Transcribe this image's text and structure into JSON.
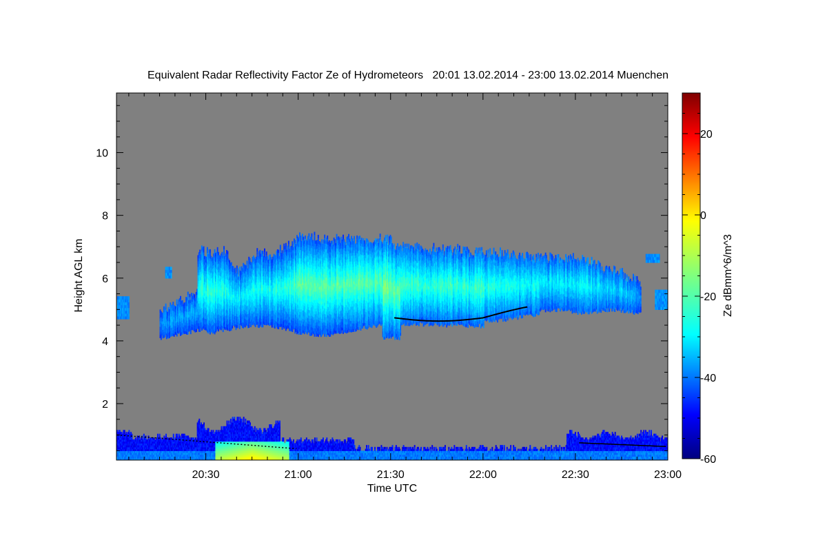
{
  "chart_data": {
    "type": "heatmap",
    "title": "Equivalent Radar Reflectivity Factor Ze of Hydrometeors   20:01 13.02.2014 - 23:00 13.02.2014 Muenchen",
    "xlabel": "Time UTC",
    "ylabel": "Height AGL km",
    "colorbar_label": "Ze dBmm^6/m^3",
    "x_range_hours": [
      20.0167,
      23.0
    ],
    "y_range_km": [
      0.2,
      11.9
    ],
    "x_ticks": [
      {
        "value": 20.5,
        "label": "20:30"
      },
      {
        "value": 21.0,
        "label": "21:00"
      },
      {
        "value": 21.5,
        "label": "21:30"
      },
      {
        "value": 22.0,
        "label": "22:00"
      },
      {
        "value": 22.5,
        "label": "22:30"
      },
      {
        "value": 23.0,
        "label": "23:00"
      }
    ],
    "y_ticks": [
      {
        "value": 2,
        "label": "2"
      },
      {
        "value": 4,
        "label": "4"
      },
      {
        "value": 6,
        "label": "6"
      },
      {
        "value": 8,
        "label": "8"
      },
      {
        "value": 10,
        "label": "10"
      }
    ],
    "colorbar_range": [
      -60,
      30
    ],
    "colorbar_ticks": [
      {
        "value": -60,
        "label": "-60"
      },
      {
        "value": -40,
        "label": "-40"
      },
      {
        "value": -20,
        "label": "-20"
      },
      {
        "value": 0,
        "label": "0"
      },
      {
        "value": 20,
        "label": "20"
      }
    ],
    "background_color": "#808080",
    "colormap": "jet",
    "cloud_layers": [
      {
        "name": "upper",
        "x_start": 20.25,
        "x_end": 22.85,
        "base_km": 4.2,
        "top_km": 7.2,
        "peak_dbz": -10
      },
      {
        "name": "boundary",
        "x_start": 20.0167,
        "x_end": 23.0,
        "base_km": 0.2,
        "top_km": 1.6,
        "peak_dbz": -2
      }
    ]
  }
}
